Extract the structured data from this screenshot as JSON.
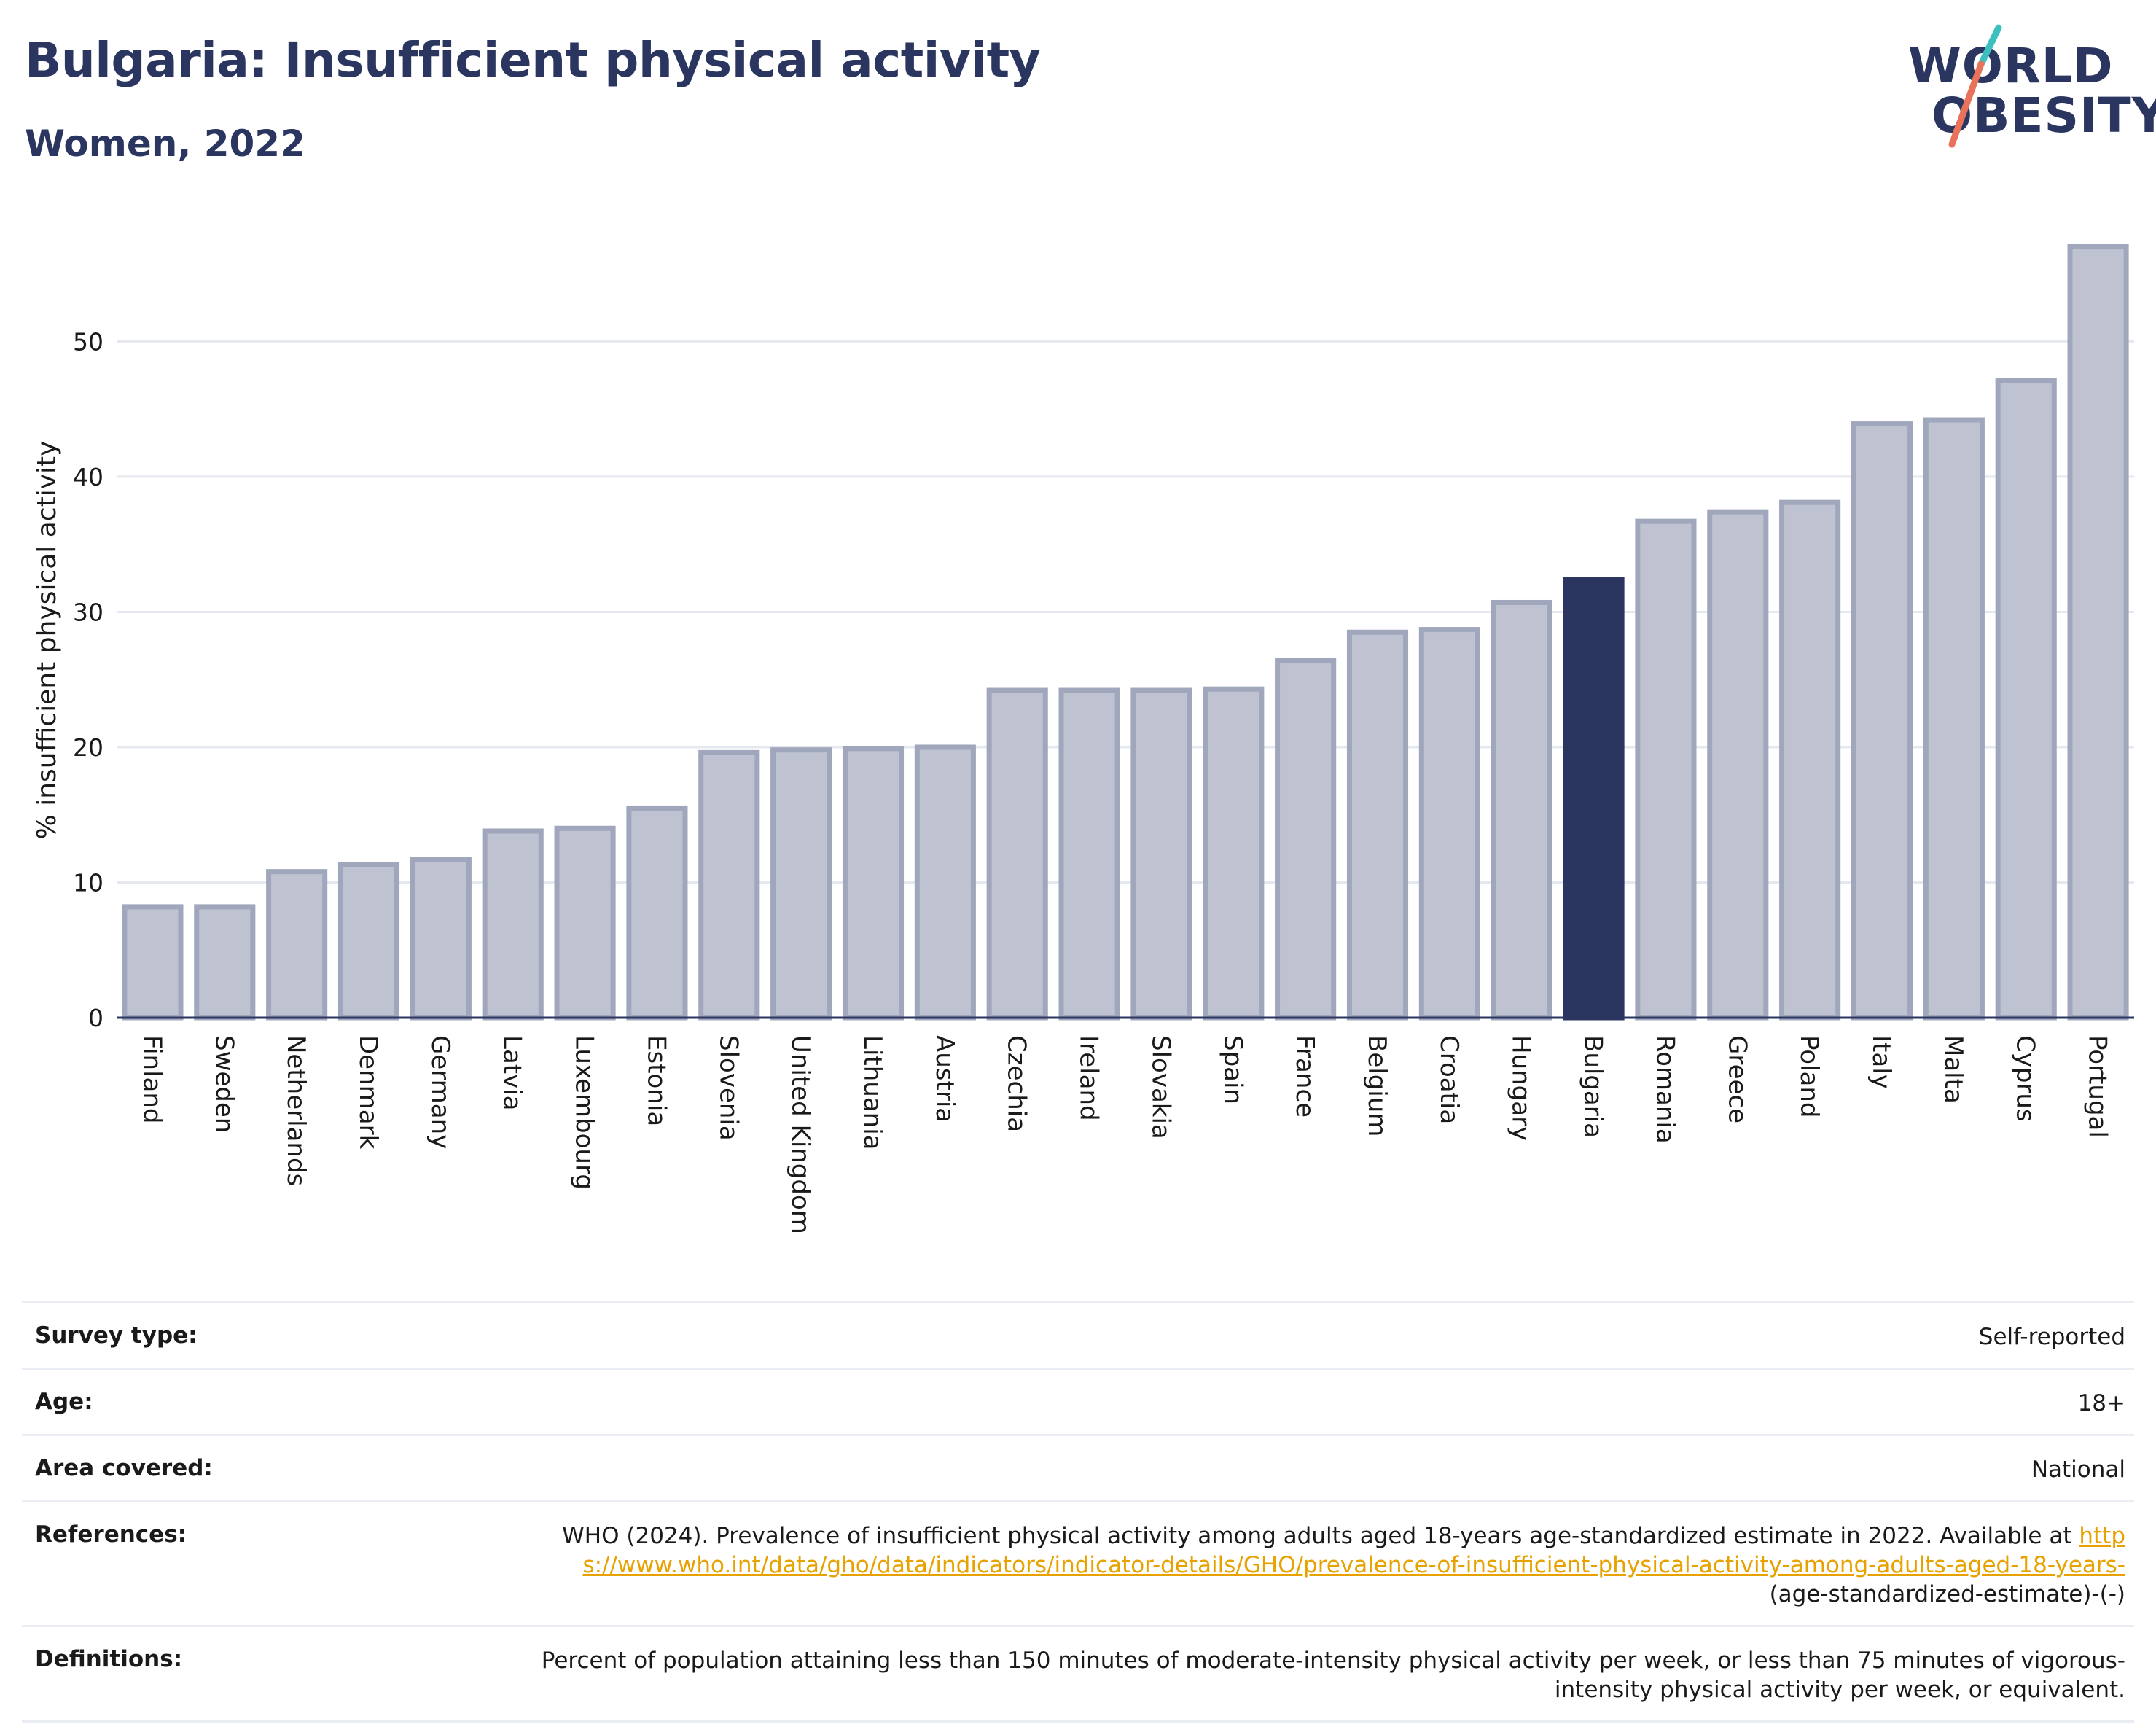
{
  "header": {
    "title": "Bulgaria: Insufficient physical activity",
    "subtitle": "Women, 2022"
  },
  "logo": {
    "line1": "WORLD",
    "line2": "OBESITY"
  },
  "colors": {
    "highlight": "#2a3560",
    "bar": "#bfc3d1",
    "bar_border": "#a0a6bb",
    "accent_teal": "#3bbfbf",
    "accent_coral": "#e8735a"
  },
  "chart_data": {
    "type": "bar",
    "ylabel": "% insufficient physical activity",
    "ylim": [
      0,
      58
    ],
    "yticks": [
      0,
      10,
      20,
      30,
      40,
      50
    ],
    "grid": true,
    "highlight": "Bulgaria",
    "categories": [
      "Finland",
      "Sweden",
      "Netherlands",
      "Denmark",
      "Germany",
      "Latvia",
      "Luxembourg",
      "Estonia",
      "Slovenia",
      "United Kingdom",
      "Lithuania",
      "Austria",
      "Czechia",
      "Ireland",
      "Slovakia",
      "Spain",
      "France",
      "Belgium",
      "Croatia",
      "Hungary",
      "Bulgaria",
      "Romania",
      "Greece",
      "Poland",
      "Italy",
      "Malta",
      "Cyprus",
      "Portugal"
    ],
    "values": [
      8.2,
      8.2,
      10.8,
      11.3,
      11.7,
      13.8,
      14.0,
      15.5,
      19.6,
      19.8,
      19.9,
      20.0,
      24.2,
      24.2,
      24.2,
      24.3,
      26.4,
      28.5,
      28.7,
      30.7,
      32.4,
      36.7,
      37.4,
      38.1,
      43.9,
      44.2,
      47.1,
      57.0
    ]
  },
  "info": {
    "survey_type": {
      "label": "Survey type:",
      "value": "Self-reported"
    },
    "age": {
      "label": "Age:",
      "value": "18+"
    },
    "area": {
      "label": "Area covered:",
      "value": "National"
    },
    "references": {
      "label": "References:",
      "text": "WHO (2024). Prevalence of insufficient physical activity among adults aged 18-years age-standardized estimate in 2022. Available at",
      "link": "https://www.who.int/data/gho/data/indicators/indicator-details/GHO/prevalence-of-insufficient-physical-activity-among-adults-aged-18-years-",
      "suffix": "(age-standardized-estimate)-(-)"
    },
    "definitions": {
      "label": "Definitions:",
      "value": "Percent of population attaining less than 150 minutes of moderate-intensity physical activity per week, or less than 75 minutes of vigorous-intensity physical activity per week, or equivalent."
    }
  }
}
